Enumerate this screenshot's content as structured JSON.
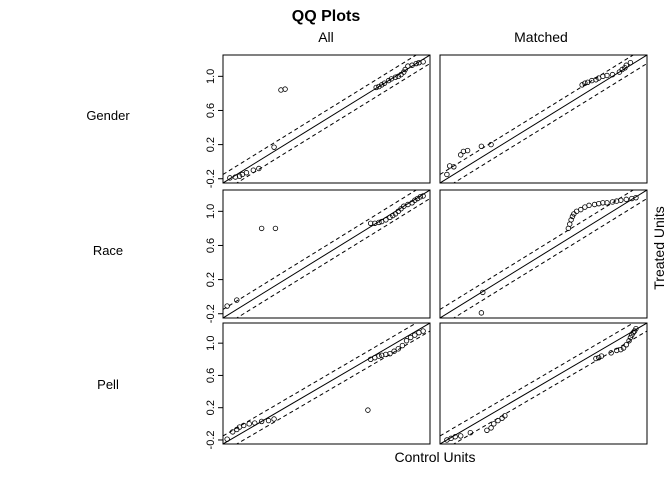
{
  "chart_data": {
    "type": "scatter",
    "title": "QQ Plots",
    "column_titles": [
      "All",
      "Matched"
    ],
    "row_labels": [
      "Gender",
      "Race",
      "Pell"
    ],
    "xlabel": "Control Units",
    "ylabel": "Treated Units",
    "ylim": [
      -0.25,
      1.25
    ],
    "xlim": [
      -0.25,
      1.25
    ],
    "yticks": [
      "-0.2",
      "0.2",
      "0.6",
      "1.0"
    ],
    "ytick_values": [
      -0.2,
      0.2,
      0.6,
      1.0
    ],
    "reference_lines": "y = x (solid) with ±0.1 bands (dashed)",
    "grid": false,
    "panels": [
      {
        "row": "Gender",
        "column": "All",
        "points": [
          [
            -0.2,
            -0.19
          ],
          [
            -0.16,
            -0.18
          ],
          [
            -0.13,
            -0.17
          ],
          [
            -0.11,
            -0.15
          ],
          [
            -0.08,
            -0.13
          ],
          [
            -0.03,
            -0.1
          ],
          [
            0.01,
            -0.08
          ],
          [
            0.12,
            0.17
          ],
          [
            0.17,
            0.84
          ],
          [
            0.2,
            0.85
          ],
          [
            0.86,
            0.87
          ],
          [
            0.88,
            0.88
          ],
          [
            0.9,
            0.9
          ],
          [
            0.92,
            0.92
          ],
          [
            0.95,
            0.95
          ],
          [
            0.97,
            0.97
          ],
          [
            1.0,
            0.99
          ],
          [
            1.02,
            1.0
          ],
          [
            1.04,
            1.02
          ],
          [
            1.06,
            1.05
          ],
          [
            1.07,
            1.08
          ],
          [
            1.09,
            1.12
          ],
          [
            1.12,
            1.13
          ],
          [
            1.15,
            1.15
          ],
          [
            1.17,
            1.16
          ],
          [
            1.2,
            1.17
          ]
        ]
      },
      {
        "row": "Gender",
        "column": "Matched",
        "points": [
          [
            -0.2,
            -0.15
          ],
          [
            -0.18,
            -0.05
          ],
          [
            -0.15,
            -0.06
          ],
          [
            -0.1,
            0.08
          ],
          [
            -0.08,
            0.12
          ],
          [
            -0.05,
            0.13
          ],
          [
            0.05,
            0.18
          ],
          [
            0.12,
            0.2
          ],
          [
            0.78,
            0.9
          ],
          [
            0.8,
            0.92
          ],
          [
            0.82,
            0.93
          ],
          [
            0.85,
            0.95
          ],
          [
            0.88,
            0.96
          ],
          [
            0.9,
            0.98
          ],
          [
            0.93,
            1.0
          ],
          [
            0.96,
            1.01
          ],
          [
            1.0,
            1.02
          ],
          [
            1.05,
            1.05
          ],
          [
            1.07,
            1.08
          ],
          [
            1.09,
            1.1
          ],
          [
            1.1,
            1.13
          ],
          [
            1.13,
            1.16
          ]
        ]
      },
      {
        "row": "Race",
        "column": "All",
        "points": [
          [
            -0.22,
            -0.11
          ],
          [
            -0.15,
            -0.04
          ],
          [
            0.03,
            0.8
          ],
          [
            0.13,
            0.8
          ],
          [
            0.82,
            0.86
          ],
          [
            0.85,
            0.86
          ],
          [
            0.88,
            0.87
          ],
          [
            0.9,
            0.88
          ],
          [
            0.93,
            0.9
          ],
          [
            0.96,
            0.93
          ],
          [
            0.98,
            0.95
          ],
          [
            1.0,
            0.97
          ],
          [
            1.02,
            1.0
          ],
          [
            1.04,
            1.03
          ],
          [
            1.06,
            1.06
          ],
          [
            1.09,
            1.08
          ],
          [
            1.12,
            1.1
          ],
          [
            1.14,
            1.13
          ],
          [
            1.16,
            1.15
          ],
          [
            1.18,
            1.17
          ],
          [
            1.2,
            1.18
          ]
        ]
      },
      {
        "row": "Race",
        "column": "Matched",
        "points": [
          [
            0.05,
            -0.19
          ],
          [
            0.06,
            0.05
          ],
          [
            0.68,
            0.8
          ],
          [
            0.69,
            0.85
          ],
          [
            0.7,
            0.9
          ],
          [
            0.71,
            0.94
          ],
          [
            0.72,
            0.97
          ],
          [
            0.74,
            1.0
          ],
          [
            0.77,
            1.02
          ],
          [
            0.8,
            1.05
          ],
          [
            0.83,
            1.07
          ],
          [
            0.87,
            1.08
          ],
          [
            0.9,
            1.09
          ],
          [
            0.93,
            1.1
          ],
          [
            0.96,
            1.1
          ],
          [
            1.0,
            1.11
          ],
          [
            1.03,
            1.12
          ],
          [
            1.06,
            1.13
          ],
          [
            1.1,
            1.14
          ],
          [
            1.14,
            1.15
          ],
          [
            1.17,
            1.16
          ]
        ]
      },
      {
        "row": "Pell",
        "column": "All",
        "points": [
          [
            -0.22,
            -0.19
          ],
          [
            -0.18,
            -0.1
          ],
          [
            -0.15,
            -0.07
          ],
          [
            -0.13,
            -0.04
          ],
          [
            -0.1,
            -0.02
          ],
          [
            -0.06,
            0.0
          ],
          [
            -0.02,
            0.01
          ],
          [
            0.03,
            0.03
          ],
          [
            0.08,
            0.04
          ],
          [
            0.12,
            0.06
          ],
          [
            0.8,
            0.17
          ],
          [
            0.82,
            0.8
          ],
          [
            0.85,
            0.82
          ],
          [
            0.88,
            0.84
          ],
          [
            0.9,
            0.85
          ],
          [
            0.93,
            0.86
          ],
          [
            0.96,
            0.87
          ],
          [
            0.99,
            0.9
          ],
          [
            1.02,
            0.93
          ],
          [
            1.05,
            0.97
          ],
          [
            1.08,
            1.03
          ],
          [
            1.11,
            1.07
          ],
          [
            1.14,
            1.1
          ],
          [
            1.17,
            1.13
          ],
          [
            1.2,
            1.15
          ]
        ]
      },
      {
        "row": "Pell",
        "column": "Matched",
        "points": [
          [
            -0.2,
            -0.2
          ],
          [
            -0.17,
            -0.18
          ],
          [
            -0.14,
            -0.16
          ],
          [
            -0.1,
            -0.15
          ],
          [
            -0.03,
            -0.11
          ],
          [
            0.09,
            -0.08
          ],
          [
            0.12,
            -0.05
          ],
          [
            0.14,
            0.0
          ],
          [
            0.17,
            0.04
          ],
          [
            0.2,
            0.07
          ],
          [
            0.22,
            0.1
          ],
          [
            0.88,
            0.81
          ],
          [
            0.9,
            0.82
          ],
          [
            0.92,
            0.84
          ],
          [
            0.99,
            0.88
          ],
          [
            1.03,
            0.91
          ],
          [
            1.06,
            0.92
          ],
          [
            1.08,
            0.94
          ],
          [
            1.1,
            0.98
          ],
          [
            1.12,
            1.03
          ],
          [
            1.13,
            1.07
          ],
          [
            1.14,
            1.1
          ],
          [
            1.15,
            1.13
          ],
          [
            1.16,
            1.15
          ],
          [
            1.17,
            1.18
          ]
        ]
      }
    ]
  }
}
